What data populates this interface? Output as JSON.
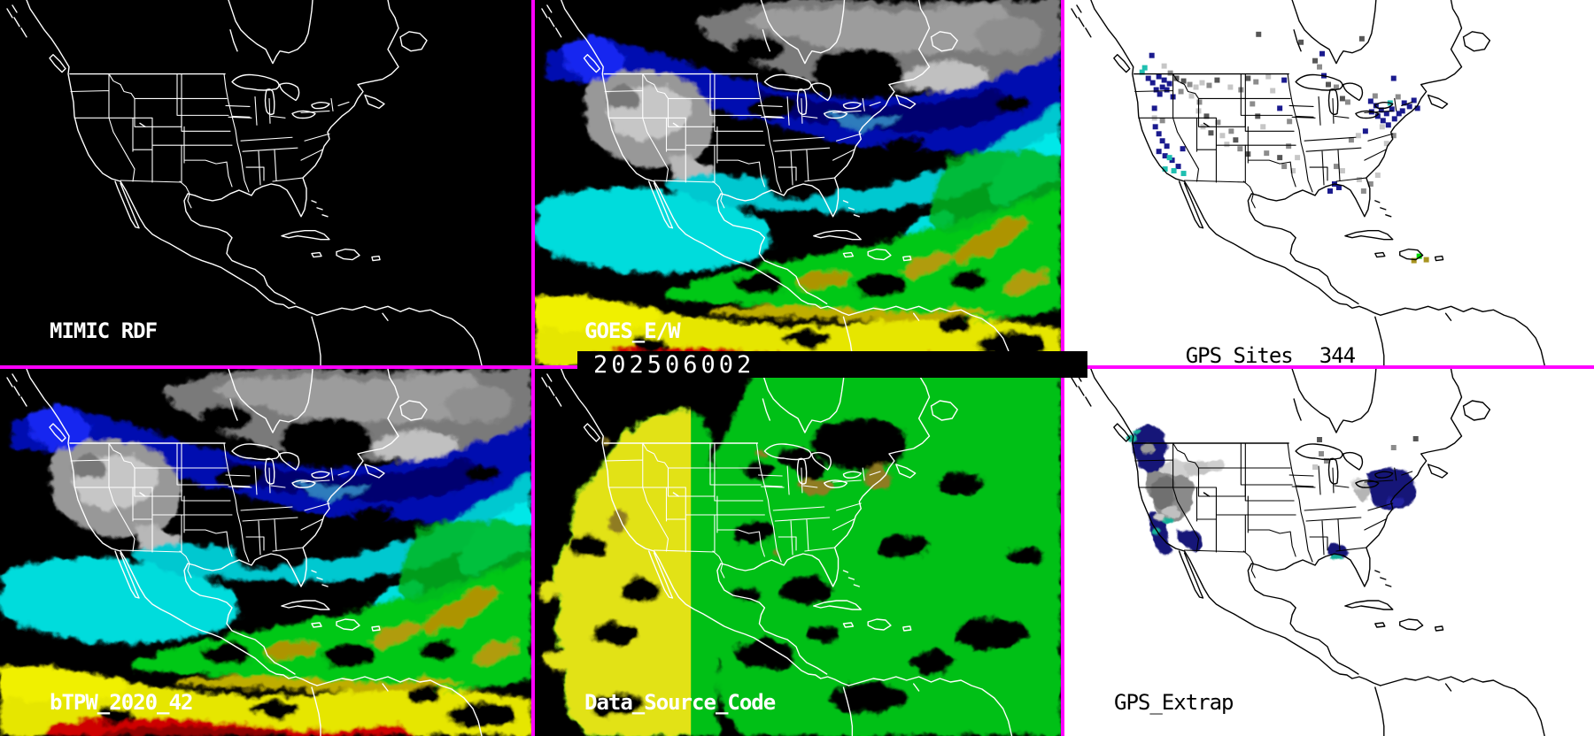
{
  "product": {
    "timestamp": "202506002"
  },
  "panels": {
    "mimic_rdf": {
      "label": "MIMIC RDF"
    },
    "goes_ew": {
      "label": "GOES_E/W"
    },
    "gps_sites": {
      "label": "GPS Sites",
      "count": "344"
    },
    "btpw": {
      "label": "bTPW_2020_42"
    },
    "data_source_code": {
      "label": "Data_Source_Code"
    },
    "gps_extrap": {
      "label": "GPS_Extrap"
    }
  },
  "colors": {
    "divider": "#ff00ff",
    "dark_panel_bg": "#000000",
    "light_panel_bg": "#ffffff",
    "outline_on_dark": "#ffffff",
    "outline_on_light": "#000000",
    "tpw_palette": {
      "cloud_gray": "#a0a0a0",
      "low_blue": "#0008b0",
      "mid_cyan": "#00dcdc",
      "moist_green": "#00c818",
      "khaki": "#ad9400",
      "high_yellow": "#e6e600",
      "very_high_red": "#cf0000"
    },
    "dsc_palette": {
      "goes_west_yellow": "#e2e218",
      "goes_east_green": "#00c018",
      "gps_brown": "#8f7c20"
    },
    "dot_palette": {
      "n": "#1a1a8e",
      "d": "#565656",
      "g": "#8c8c8c",
      "l": "#c6c6c6",
      "t": "#1fbfb0",
      "G": "#00d800",
      "k": "#a89420"
    }
  },
  "gps_dots": [
    [
      96,
      60,
      "n"
    ],
    [
      104,
      84,
      "n"
    ],
    [
      110,
      88,
      "n"
    ],
    [
      116,
      92,
      "n"
    ],
    [
      108,
      96,
      "n"
    ],
    [
      101,
      99,
      "n"
    ],
    [
      105,
      104,
      "n"
    ],
    [
      97,
      91,
      "n"
    ],
    [
      113,
      99,
      "n"
    ],
    [
      92,
      86,
      "n"
    ],
    [
      120,
      107,
      "n"
    ],
    [
      99,
      120,
      "n"
    ],
    [
      88,
      74,
      "t"
    ],
    [
      85,
      79,
      "t"
    ],
    [
      117,
      80,
      "g"
    ],
    [
      124,
      86,
      "d"
    ],
    [
      110,
      72,
      "l"
    ],
    [
      132,
      89,
      "d"
    ],
    [
      139,
      93,
      "g"
    ],
    [
      146,
      96,
      "l"
    ],
    [
      153,
      91,
      "l"
    ],
    [
      161,
      94,
      "g"
    ],
    [
      170,
      88,
      "d"
    ],
    [
      129,
      101,
      "g"
    ],
    [
      141,
      106,
      "l"
    ],
    [
      150,
      113,
      "g"
    ],
    [
      185,
      96,
      "l"
    ],
    [
      197,
      99,
      "g"
    ],
    [
      100,
      141,
      "n"
    ],
    [
      104,
      149,
      "n"
    ],
    [
      108,
      157,
      "n"
    ],
    [
      113,
      163,
      "n"
    ],
    [
      104,
      169,
      "n"
    ],
    [
      111,
      174,
      "n"
    ],
    [
      119,
      179,
      "n"
    ],
    [
      126,
      186,
      "n"
    ],
    [
      131,
      166,
      "n"
    ],
    [
      116,
      176,
      "t"
    ],
    [
      111,
      189,
      "t"
    ],
    [
      121,
      191,
      "t"
    ],
    [
      132,
      194,
      "t"
    ],
    [
      99,
      131,
      "l"
    ],
    [
      108,
      134,
      "g"
    ],
    [
      149,
      123,
      "l"
    ],
    [
      158,
      129,
      "d"
    ],
    [
      154,
      141,
      "l"
    ],
    [
      171,
      136,
      "g"
    ],
    [
      163,
      148,
      "d"
    ],
    [
      186,
      146,
      "g"
    ],
    [
      191,
      156,
      "d"
    ],
    [
      181,
      161,
      "l"
    ],
    [
      196,
      166,
      "g"
    ],
    [
      176,
      151,
      "l"
    ],
    [
      205,
      172,
      "d"
    ],
    [
      205,
      86,
      "d"
    ],
    [
      214,
      90,
      "g"
    ],
    [
      228,
      84,
      "l"
    ],
    [
      246,
      88,
      "n"
    ],
    [
      233,
      100,
      "l"
    ],
    [
      210,
      115,
      "g"
    ],
    [
      216,
      129,
      "d"
    ],
    [
      222,
      141,
      "l"
    ],
    [
      241,
      120,
      "n"
    ],
    [
      252,
      135,
      "g"
    ],
    [
      246,
      186,
      "g"
    ],
    [
      256,
      191,
      "l"
    ],
    [
      241,
      176,
      "d"
    ],
    [
      226,
      171,
      "g"
    ],
    [
      261,
      176,
      "l"
    ],
    [
      251,
      163,
      "g"
    ],
    [
      281,
      66,
      "d"
    ],
    [
      286,
      73,
      "g"
    ],
    [
      291,
      83,
      "n"
    ],
    [
      296,
      93,
      "d"
    ],
    [
      305,
      96,
      "g"
    ],
    [
      312,
      109,
      "d"
    ],
    [
      318,
      113,
      "g"
    ],
    [
      289,
      58,
      "n"
    ],
    [
      217,
      36,
      "d"
    ],
    [
      265,
      45,
      "d"
    ],
    [
      334,
      41,
      "d"
    ],
    [
      370,
      86,
      "n"
    ],
    [
      344,
      112,
      "n"
    ],
    [
      350,
      117,
      "n"
    ],
    [
      356,
      122,
      "n"
    ],
    [
      362,
      126,
      "n"
    ],
    [
      368,
      121,
      "n"
    ],
    [
      352,
      129,
      "n"
    ],
    [
      358,
      134,
      "n"
    ],
    [
      345,
      124,
      "n"
    ],
    [
      364,
      139,
      "n"
    ],
    [
      371,
      132,
      "n"
    ],
    [
      376,
      126,
      "n"
    ],
    [
      357,
      141,
      "l"
    ],
    [
      366,
      114,
      "t"
    ],
    [
      349,
      106,
      "g"
    ],
    [
      382,
      114,
      "n"
    ],
    [
      388,
      118,
      "n"
    ],
    [
      393,
      111,
      "n"
    ],
    [
      380,
      123,
      "n"
    ],
    [
      375,
      107,
      "g"
    ],
    [
      397,
      120,
      "n"
    ],
    [
      338,
      146,
      "n"
    ],
    [
      330,
      151,
      "l"
    ],
    [
      322,
      156,
      "g"
    ],
    [
      331,
      201,
      "l"
    ],
    [
      344,
      206,
      "g"
    ],
    [
      352,
      196,
      "l"
    ],
    [
      312,
      191,
      "l"
    ],
    [
      305,
      186,
      "g"
    ],
    [
      303,
      206,
      "n"
    ],
    [
      308,
      210,
      "n"
    ],
    [
      298,
      214,
      "n"
    ],
    [
      336,
      214,
      "g"
    ],
    [
      370,
      151,
      "g"
    ],
    [
      362,
      160,
      "l"
    ],
    [
      399,
      288,
      "G"
    ],
    [
      393,
      293,
      "k"
    ],
    [
      407,
      292,
      "k"
    ]
  ],
  "extrap_dots": [
    [
      286,
      77,
      "d"
    ],
    [
      288,
      93,
      "g"
    ],
    [
      294,
      101,
      "g"
    ],
    [
      281,
      108,
      "l"
    ],
    [
      395,
      76,
      "d"
    ],
    [
      370,
      86,
      "g"
    ]
  ]
}
